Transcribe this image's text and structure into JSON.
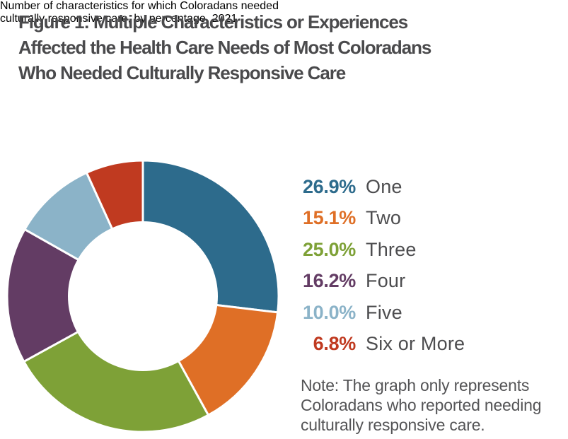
{
  "title": {
    "lines": [
      "Figure 1: Multiple Characteristics or Experiences",
      "Affected the Health Care Needs of Most Coloradans",
      "Who Needed Culturally Responsive Care"
    ]
  },
  "subtitle": {
    "lines": [
      "Number of characteristics for which Coloradans needed",
      "culturally responsive care, by percentage, 2021"
    ]
  },
  "chart_data": {
    "type": "pie",
    "subtype": "donut",
    "title": "Number of characteristics for which Coloradans needed culturally responsive care, by percentage, 2021",
    "categories": [
      "One",
      "Two",
      "Three",
      "Four",
      "Five",
      "Six or More"
    ],
    "values": [
      26.9,
      15.1,
      25.0,
      16.2,
      10.0,
      6.8
    ],
    "value_labels": [
      "26.9%",
      "15.1%",
      "25.0%",
      "16.2%",
      "10.0%",
      "6.8%"
    ],
    "colors": [
      "#2d6b8c",
      "#df6f26",
      "#7ea137",
      "#633c64",
      "#8bb3c8",
      "#c03a20"
    ],
    "start_angle_deg": -90,
    "direction": "clockwise",
    "inner_radius_ratio": 0.55,
    "slice_gap_color": "#ffffff",
    "legend_position": "right"
  },
  "legend": {
    "rows": [
      {
        "pct": "26.9%",
        "label": "One"
      },
      {
        "pct": "15.1%",
        "label": "Two"
      },
      {
        "pct": "25.0%",
        "label": "Three"
      },
      {
        "pct": "16.2%",
        "label": "Four"
      },
      {
        "pct": "10.0%",
        "label": "Five"
      },
      {
        "pct": "6.8%",
        "label": "Six or More"
      }
    ]
  },
  "note": {
    "lines": [
      "Note: The graph only represents",
      "Coloradans who reported needing",
      "culturally responsive care."
    ]
  },
  "colors": {
    "background": "#ffffff",
    "title_text": "#4a4a4c",
    "subtitle_text": "#58585a",
    "legend_label_text": "#4d4d4f",
    "note_text": "#545456"
  }
}
